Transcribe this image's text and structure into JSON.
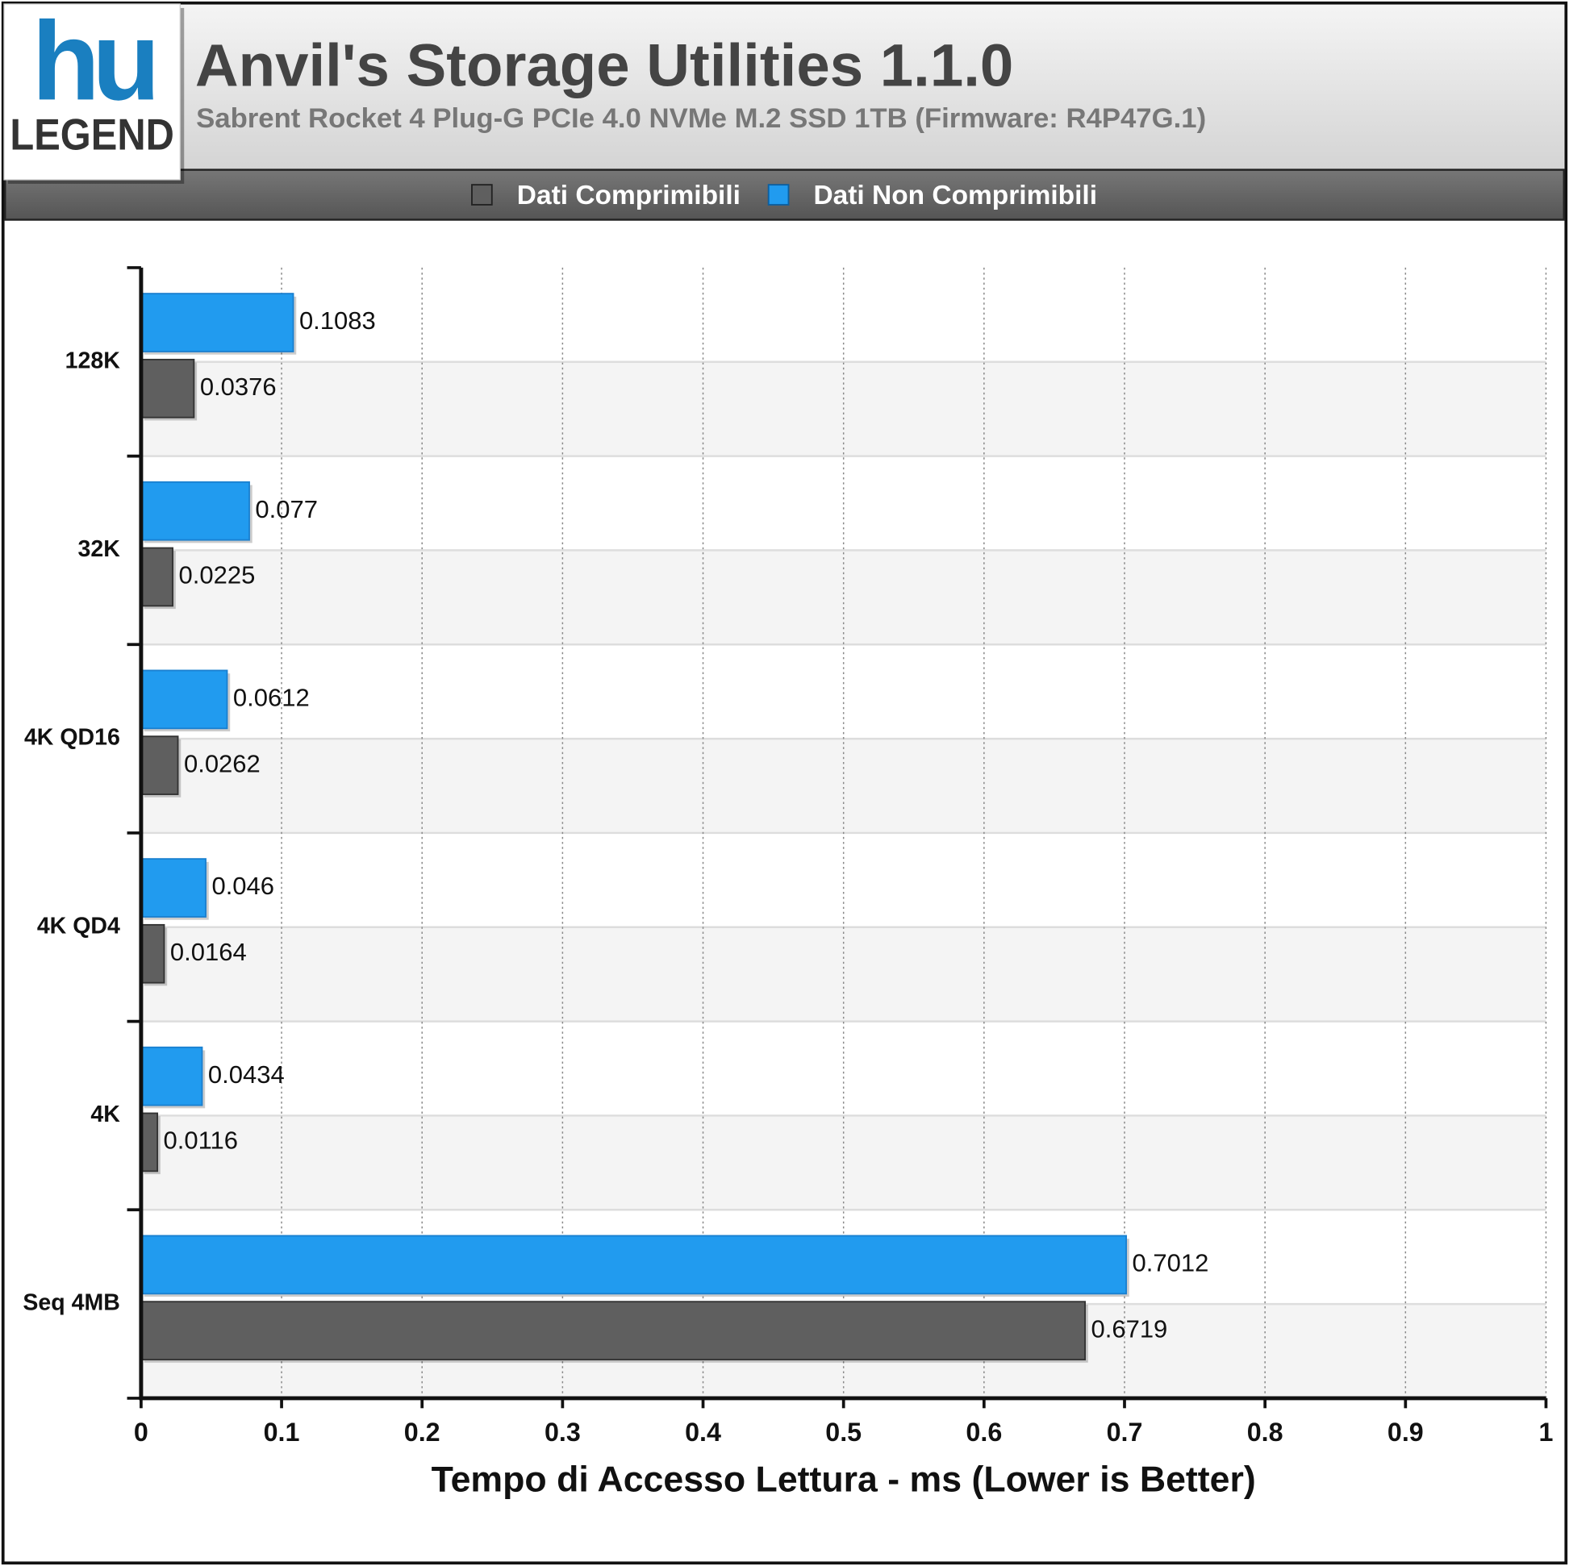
{
  "logo": {
    "mark": "hu",
    "text": "LEGEND"
  },
  "chart_data": {
    "type": "hbar",
    "title": "Anvil's Storage Utilities 1.1.0",
    "subtitle": "Sabrent Rocket 4 Plug-G PCIe 4.0 NVMe M.2 SSD 1TB (Firmware: R4P47G.1)",
    "x_label": "Tempo di Accesso Lettura - ms (Lower is Better)",
    "categories": [
      "128K",
      "32K",
      "4K QD16",
      "4K QD4",
      "4K",
      "Seq 4MB"
    ],
    "series": [
      {
        "name": "Dati Comprimibili",
        "color": "#5f5f5f",
        "values": [
          0.0376,
          0.0225,
          0.0262,
          0.0164,
          0.0116,
          0.6719
        ]
      },
      {
        "name": "Dati Non Comprimibili",
        "color": "#219bef",
        "values": [
          0.1083,
          0.077,
          0.0612,
          0.046,
          0.0434,
          0.7012
        ]
      }
    ],
    "xlim": [
      0,
      1
    ],
    "xticks": [
      0,
      0.1,
      0.2,
      0.3,
      0.4,
      0.5,
      0.6,
      0.7,
      0.8,
      0.9,
      1
    ],
    "grid": true
  }
}
